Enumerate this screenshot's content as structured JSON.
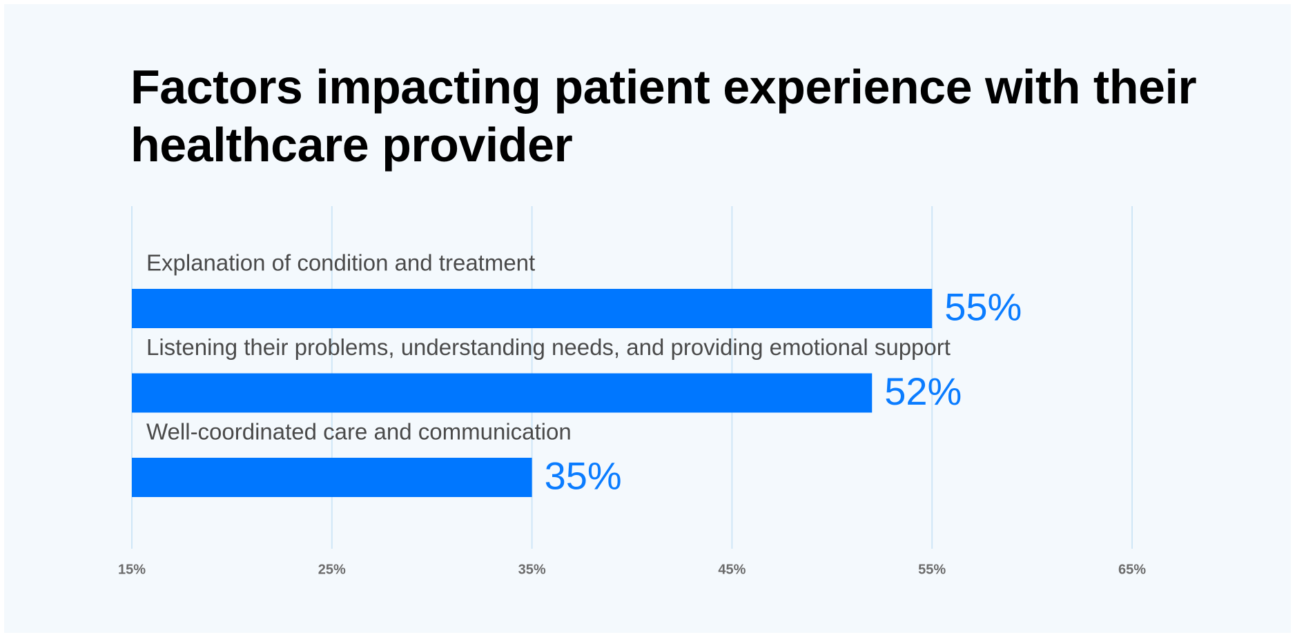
{
  "chart_data": {
    "type": "bar",
    "orientation": "horizontal",
    "title": "Factors impacting patient experience with their healthcare provider",
    "categories": [
      "Explanation of condition and treatment",
      "Listening their problems, understanding needs, and providing emotional support",
      "Well-coordinated care and communication"
    ],
    "values": [
      55,
      52,
      35
    ],
    "value_labels": [
      "55%",
      "52%",
      "35%"
    ],
    "color": "#0077ff",
    "xlim": [
      15,
      65
    ],
    "xticks": [
      {
        "value": 15,
        "label": "15%"
      },
      {
        "value": 25,
        "label": "25%"
      },
      {
        "value": 35,
        "label": "35%"
      },
      {
        "value": 45,
        "label": "45%"
      },
      {
        "value": 55,
        "label": "55%"
      },
      {
        "value": 65,
        "label": "65%"
      }
    ],
    "grid": true
  }
}
